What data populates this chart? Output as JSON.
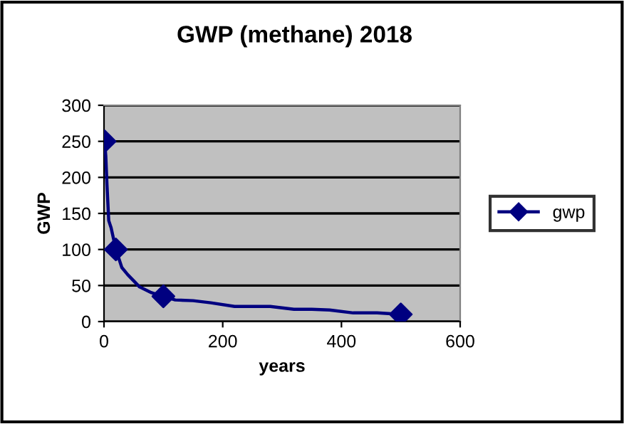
{
  "chart_data": {
    "type": "line",
    "title": "GWP (methane) 2018",
    "xlabel": "years",
    "ylabel": "GWP",
    "series": [
      {
        "color": "#000080",
        "marker": "none",
        "x": [
          1,
          3,
          5,
          8,
          12,
          20,
          30,
          40,
          60,
          80,
          100,
          120,
          150,
          180,
          220,
          280,
          300,
          320,
          350,
          380,
          420,
          460,
          500
        ],
        "values": [
          250,
          230,
          190,
          140,
          130,
          100,
          75,
          65,
          48,
          40,
          35,
          30,
          29,
          26,
          21,
          21,
          19,
          17,
          17,
          16,
          12,
          12,
          10
        ]
      },
      {
        "type": "scatter",
        "name": "gwp",
        "color": "#000080",
        "marker": "diamond",
        "x": [
          1,
          20,
          100,
          500
        ],
        "values": [
          250,
          100,
          35,
          10
        ]
      }
    ],
    "xlim": [
      0,
      600
    ],
    "xticks": [
      0,
      200,
      400,
      600
    ],
    "ylim": [
      0,
      300
    ],
    "yticks": [
      0,
      50,
      100,
      150,
      200,
      250,
      300
    ],
    "grid": "y",
    "legend": "right"
  }
}
